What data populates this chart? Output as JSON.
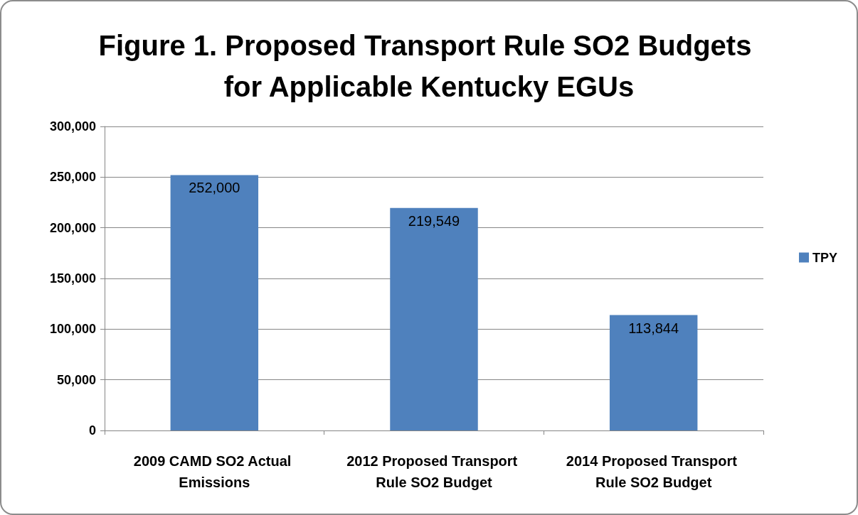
{
  "chart_data": {
    "type": "bar",
    "title": "Figure 1. Proposed Transport Rule SO2 Budgets for Applicable Kentucky EGUs",
    "categories": [
      "2009 CAMD SO2 Actual Emissions",
      "2012 Proposed Transport Rule SO2 Budget",
      "2014 Proposed Transport Rule SO2 Budget"
    ],
    "series": [
      {
        "name": "TPY",
        "color": "#4f81bd",
        "values": [
          252000,
          219549,
          113844
        ],
        "value_labels": [
          "252,000",
          "219,549",
          "113,844"
        ]
      }
    ],
    "ylim": [
      0,
      300000
    ],
    "yticks": [
      {
        "value": 0,
        "label": "0"
      },
      {
        "value": 50000,
        "label": "50,000"
      },
      {
        "value": 100000,
        "label": "100,000"
      },
      {
        "value": 150000,
        "label": "150,000"
      },
      {
        "value": 200000,
        "label": "200,000"
      },
      {
        "value": 250000,
        "label": "250,000"
      },
      {
        "value": 300000,
        "label": "300,000"
      }
    ],
    "grid": "y",
    "legend": "right"
  }
}
